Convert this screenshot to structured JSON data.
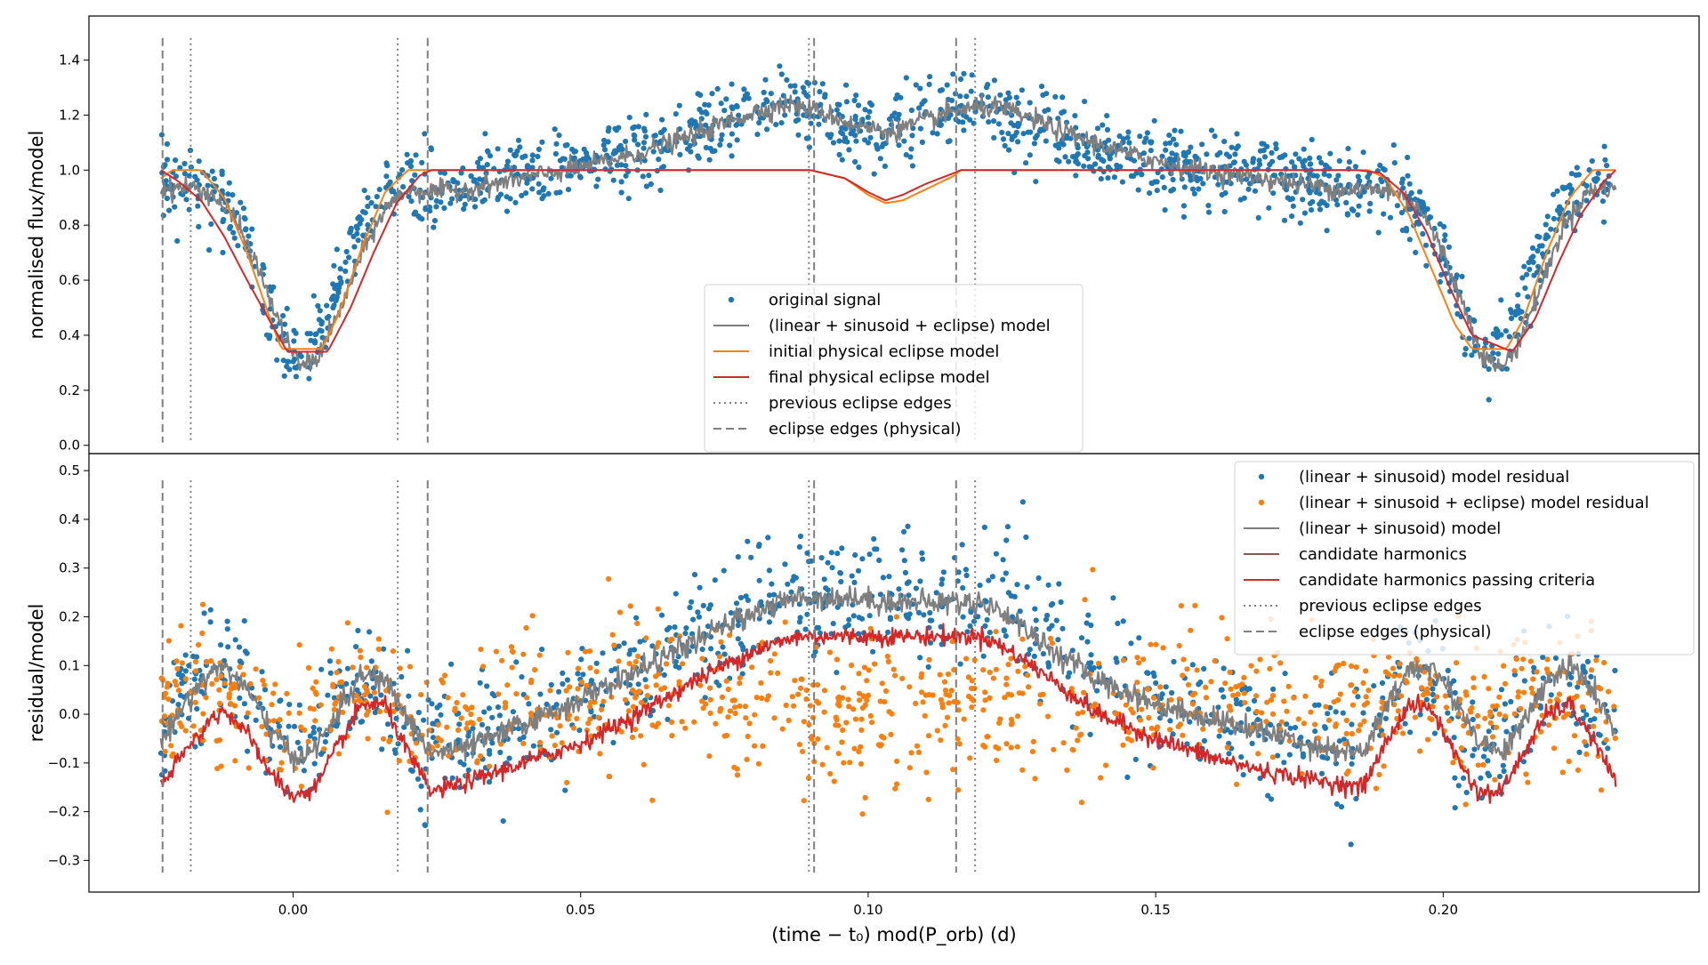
{
  "figure": {
    "xlabel": "(time − t₀) mod(P_orb) (d)",
    "xlim": [
      -0.0355,
      0.2445
    ],
    "xticks": [
      0.0,
      0.05,
      0.1,
      0.15,
      0.2
    ],
    "xtick_labels": [
      "0.00",
      "0.05",
      "0.10",
      "0.15",
      "0.20"
    ]
  },
  "colors": {
    "blue": "#1f77b4",
    "orange": "#ff7f0e",
    "grey": "#7f7f7f",
    "brown": "#8c564b",
    "red": "#d62728"
  },
  "chart_data": [
    {
      "type": "scatter",
      "ylabel": "normalised flux/model",
      "ylim": [
        -0.03,
        1.56
      ],
      "yticks": [
        0.0,
        0.2,
        0.4,
        0.6,
        0.8,
        1.0,
        1.2,
        1.4
      ],
      "ytick_labels": [
        "0.0",
        "0.2",
        "0.4",
        "0.6",
        "0.8",
        "1.0",
        "1.2",
        "1.4"
      ],
      "legend_position": "lower-center",
      "legend": [
        {
          "label": "original signal",
          "kind": "marker",
          "color": "blue"
        },
        {
          "label": "(linear + sinusoid + eclipse) model",
          "kind": "line",
          "color": "grey"
        },
        {
          "label": "initial physical eclipse model",
          "kind": "line",
          "color": "orange"
        },
        {
          "label": "final physical eclipse model",
          "kind": "line",
          "color": "red"
        },
        {
          "label": "previous eclipse edges",
          "kind": "dotted",
          "color": "grey"
        },
        {
          "label": "eclipse edges (physical)",
          "kind": "dashed",
          "color": "grey"
        }
      ],
      "series": [
        {
          "name": "original signal",
          "kind": "scatter",
          "color": "blue",
          "x": [
            -0.023,
            -0.02,
            -0.017,
            -0.014,
            -0.011,
            -0.008,
            -0.005,
            -0.002,
            0.001,
            0.004,
            0.007,
            0.01,
            0.013,
            0.016,
            0.019,
            0.022,
            0.025,
            0.03,
            0.04,
            0.05,
            0.06,
            0.07,
            0.08,
            0.085,
            0.09,
            0.095,
            0.1,
            0.105,
            0.11,
            0.115,
            0.12,
            0.125,
            0.13,
            0.14,
            0.15,
            0.16,
            0.17,
            0.18,
            0.186,
            0.19,
            0.193,
            0.196,
            0.199,
            0.202,
            0.205,
            0.208,
            0.211,
            0.214,
            0.217,
            0.22,
            0.223,
            0.226,
            0.229
          ],
          "y": [
            0.95,
            0.97,
            0.95,
            0.92,
            0.86,
            0.74,
            0.55,
            0.38,
            0.3,
            0.35,
            0.52,
            0.72,
            0.85,
            0.92,
            0.96,
            0.93,
            0.92,
            0.95,
            0.98,
            1.02,
            1.06,
            1.12,
            1.2,
            1.24,
            1.22,
            1.17,
            1.14,
            1.16,
            1.2,
            1.23,
            1.22,
            1.18,
            1.14,
            1.08,
            1.03,
            1.0,
            0.98,
            0.95,
            0.93,
            0.92,
            0.9,
            0.86,
            0.76,
            0.58,
            0.4,
            0.3,
            0.36,
            0.52,
            0.72,
            0.86,
            0.93,
            0.96,
            0.94
          ]
        },
        {
          "name": "(linear + sinusoid + eclipse) model",
          "kind": "line",
          "color": "grey",
          "x": [
            -0.023,
            -0.018,
            -0.014,
            -0.01,
            -0.006,
            -0.002,
            0.001,
            0.004,
            0.008,
            0.012,
            0.016,
            0.02,
            0.024,
            0.03,
            0.04,
            0.05,
            0.06,
            0.07,
            0.08,
            0.086,
            0.092,
            0.098,
            0.104,
            0.11,
            0.116,
            0.122,
            0.128,
            0.135,
            0.145,
            0.155,
            0.165,
            0.175,
            0.182,
            0.188,
            0.192,
            0.196,
            0.2,
            0.204,
            0.207,
            0.21,
            0.213,
            0.217,
            0.221,
            0.225,
            0.23
          ],
          "y": [
            0.93,
            0.94,
            0.91,
            0.82,
            0.64,
            0.42,
            0.29,
            0.31,
            0.48,
            0.7,
            0.86,
            0.93,
            0.92,
            0.93,
            0.97,
            1.01,
            1.06,
            1.13,
            1.21,
            1.24,
            1.21,
            1.16,
            1.14,
            1.18,
            1.22,
            1.23,
            1.19,
            1.13,
            1.06,
            1.01,
            0.98,
            0.95,
            0.93,
            0.93,
            0.92,
            0.86,
            0.7,
            0.48,
            0.32,
            0.28,
            0.36,
            0.58,
            0.8,
            0.92,
            0.94
          ]
        },
        {
          "name": "initial physical eclipse model",
          "kind": "line",
          "color": "orange",
          "x": [
            -0.023,
            -0.021,
            -0.016,
            -0.012,
            -0.008,
            -0.004,
            -0.002,
            0.005,
            0.008,
            0.012,
            0.016,
            0.02,
            0.024,
            0.085,
            0.09,
            0.096,
            0.1,
            0.103,
            0.106,
            0.11,
            0.115,
            0.116,
            0.185,
            0.187,
            0.19,
            0.194,
            0.198,
            0.202,
            0.205,
            0.211,
            0.214,
            0.218,
            0.222,
            0.226,
            0.23
          ],
          "y": [
            0.97,
            1.0,
            1.0,
            0.9,
            0.7,
            0.46,
            0.35,
            0.35,
            0.48,
            0.72,
            0.92,
            1.0,
            1.0,
            1.0,
            1.0,
            0.97,
            0.91,
            0.88,
            0.89,
            0.93,
            0.98,
            1.0,
            1.0,
            1.0,
            0.97,
            0.84,
            0.64,
            0.44,
            0.35,
            0.35,
            0.46,
            0.7,
            0.9,
            1.0,
            1.0
          ]
        },
        {
          "name": "final physical eclipse model",
          "kind": "line",
          "color": "red",
          "x": [
            -0.023,
            -0.02,
            -0.016,
            -0.012,
            -0.008,
            -0.004,
            -0.001,
            0.006,
            0.01,
            0.014,
            0.018,
            0.022,
            0.024,
            0.085,
            0.09,
            0.096,
            0.1,
            0.103,
            0.106,
            0.11,
            0.115,
            0.116,
            0.185,
            0.189,
            0.193,
            0.197,
            0.201,
            0.205,
            0.212,
            0.216,
            0.22,
            0.224,
            0.228,
            0.23
          ],
          "y": [
            1.0,
            0.96,
            0.89,
            0.76,
            0.6,
            0.45,
            0.34,
            0.34,
            0.5,
            0.7,
            0.88,
            0.98,
            1.0,
            1.0,
            1.0,
            0.97,
            0.92,
            0.89,
            0.91,
            0.95,
            0.99,
            1.0,
            1.0,
            0.99,
            0.92,
            0.78,
            0.58,
            0.4,
            0.34,
            0.46,
            0.66,
            0.84,
            0.96,
            1.0
          ]
        }
      ],
      "vlines": [
        {
          "x": -0.0227,
          "style": "dashed"
        },
        {
          "x": -0.0178,
          "style": "dotted"
        },
        {
          "x": 0.0182,
          "style": "dotted"
        },
        {
          "x": 0.0234,
          "style": "dashed"
        },
        {
          "x": 0.0897,
          "style": "dotted"
        },
        {
          "x": 0.0906,
          "style": "dashed"
        },
        {
          "x": 0.1153,
          "style": "dashed"
        },
        {
          "x": 0.1186,
          "style": "dotted"
        }
      ]
    },
    {
      "type": "scatter",
      "ylabel": "residual/model",
      "ylim": [
        -0.365,
        0.535
      ],
      "yticks": [
        -0.3,
        -0.2,
        -0.1,
        0.0,
        0.1,
        0.2,
        0.3,
        0.4,
        0.5
      ],
      "ytick_labels": [
        "−0.3",
        "−0.2",
        "−0.1",
        "0.0",
        "0.1",
        "0.2",
        "0.3",
        "0.4",
        "0.5"
      ],
      "legend_position": "upper-right",
      "legend": [
        {
          "label": "(linear + sinusoid) model residual",
          "kind": "marker",
          "color": "blue"
        },
        {
          "label": "(linear + sinusoid + eclipse) model residual",
          "kind": "marker",
          "color": "orange"
        },
        {
          "label": "(linear + sinusoid) model",
          "kind": "line",
          "color": "grey"
        },
        {
          "label": "candidate harmonics",
          "kind": "line",
          "color": "brown"
        },
        {
          "label": "candidate harmonics passing criteria",
          "kind": "line",
          "color": "red"
        },
        {
          "label": "previous eclipse edges",
          "kind": "dotted",
          "color": "grey"
        },
        {
          "label": "eclipse edges (physical)",
          "kind": "dashed",
          "color": "grey"
        }
      ],
      "series": [
        {
          "name": "(linear + sinusoid) model residual",
          "kind": "scatter",
          "color": "blue",
          "x": [
            -0.023,
            -0.019,
            -0.015,
            -0.011,
            -0.007,
            -0.003,
            0.001,
            0.005,
            0.009,
            0.013,
            0.017,
            0.021,
            0.025,
            0.03,
            0.04,
            0.05,
            0.06,
            0.07,
            0.08,
            0.088,
            0.096,
            0.104,
            0.112,
            0.12,
            0.128,
            0.136,
            0.146,
            0.156,
            0.166,
            0.176,
            0.184,
            0.19,
            0.194,
            0.198,
            0.202,
            0.206,
            0.21,
            0.214,
            0.218,
            0.222,
            0.226,
            0.23
          ],
          "y": [
            -0.05,
            0.05,
            0.1,
            0.09,
            0.02,
            -0.06,
            -0.08,
            -0.03,
            0.05,
            0.08,
            0.03,
            -0.05,
            -0.08,
            -0.07,
            -0.02,
            0.03,
            0.09,
            0.15,
            0.21,
            0.24,
            0.24,
            0.24,
            0.23,
            0.23,
            0.2,
            0.13,
            0.06,
            0.01,
            -0.02,
            -0.05,
            -0.07,
            0.02,
            0.08,
            0.09,
            0.01,
            -0.06,
            -0.07,
            0.0,
            0.08,
            0.09,
            0.02,
            -0.05
          ]
        },
        {
          "name": "(linear + sinusoid + eclipse) model residual",
          "kind": "scatter",
          "color": "orange",
          "x": [
            -0.023,
            -0.019,
            -0.015,
            -0.011,
            -0.007,
            -0.003,
            0.001,
            0.005,
            0.009,
            0.013,
            0.017,
            0.021,
            0.025,
            0.03,
            0.04,
            0.05,
            0.06,
            0.07,
            0.08,
            0.088,
            0.096,
            0.104,
            0.112,
            0.12,
            0.128,
            0.136,
            0.146,
            0.156,
            0.166,
            0.176,
            0.184,
            0.19,
            0.194,
            0.198,
            0.202,
            0.206,
            0.21,
            0.214,
            0.218,
            0.222,
            0.226,
            0.23
          ],
          "y": [
            0.02,
            0.04,
            0.05,
            0.03,
            0.01,
            -0.02,
            -0.01,
            0.02,
            0.04,
            0.05,
            0.03,
            0.0,
            -0.01,
            0.01,
            0.02,
            0.03,
            0.03,
            0.02,
            0.01,
            0.0,
            0.0,
            0.01,
            0.0,
            0.01,
            0.02,
            0.01,
            0.02,
            0.03,
            0.03,
            0.02,
            0.01,
            0.03,
            0.05,
            0.04,
            0.02,
            -0.01,
            0.0,
            0.03,
            0.05,
            0.04,
            0.02,
            0.01
          ]
        },
        {
          "name": "(linear + sinusoid) model",
          "kind": "line",
          "color": "grey",
          "x": [
            -0.023,
            -0.019,
            -0.015,
            -0.012,
            -0.008,
            -0.004,
            0.0,
            0.004,
            0.008,
            0.012,
            0.016,
            0.02,
            0.024,
            0.03,
            0.04,
            0.05,
            0.06,
            0.07,
            0.08,
            0.088,
            0.096,
            0.104,
            0.112,
            0.12,
            0.126,
            0.132,
            0.14,
            0.15,
            0.16,
            0.17,
            0.18,
            0.186,
            0.19,
            0.194,
            0.198,
            0.202,
            0.206,
            0.21,
            0.214,
            0.218,
            0.222,
            0.226,
            0.23
          ],
          "y": [
            -0.06,
            0.02,
            0.08,
            0.1,
            0.05,
            -0.03,
            -0.09,
            -0.07,
            0.01,
            0.08,
            0.07,
            -0.01,
            -0.08,
            -0.07,
            -0.02,
            0.03,
            0.09,
            0.15,
            0.21,
            0.24,
            0.24,
            0.23,
            0.23,
            0.23,
            0.19,
            0.13,
            0.07,
            0.02,
            -0.01,
            -0.04,
            -0.07,
            -0.08,
            0.01,
            0.09,
            0.1,
            0.03,
            -0.05,
            -0.08,
            -0.02,
            0.07,
            0.1,
            0.05,
            -0.04
          ]
        },
        {
          "name": "candidate harmonics passing criteria",
          "kind": "line",
          "color": "red",
          "x": [
            -0.023,
            -0.019,
            -0.015,
            -0.012,
            -0.008,
            -0.004,
            0.0,
            0.004,
            0.008,
            0.012,
            0.016,
            0.02,
            0.024,
            0.03,
            0.04,
            0.05,
            0.06,
            0.07,
            0.08,
            0.088,
            0.096,
            0.104,
            0.112,
            0.12,
            0.126,
            0.132,
            0.14,
            0.15,
            0.16,
            0.17,
            0.18,
            0.186,
            0.19,
            0.194,
            0.198,
            0.202,
            0.206,
            0.21,
            0.214,
            0.218,
            0.222,
            0.226,
            0.23
          ],
          "y": [
            -0.15,
            -0.08,
            -0.02,
            0.01,
            -0.04,
            -0.12,
            -0.17,
            -0.15,
            -0.06,
            0.02,
            0.02,
            -0.08,
            -0.16,
            -0.14,
            -0.1,
            -0.06,
            0.0,
            0.07,
            0.13,
            0.16,
            0.16,
            0.16,
            0.16,
            0.16,
            0.12,
            0.07,
            0.0,
            -0.05,
            -0.09,
            -0.12,
            -0.14,
            -0.15,
            -0.06,
            0.02,
            0.01,
            -0.08,
            -0.16,
            -0.16,
            -0.08,
            0.0,
            0.02,
            -0.05,
            -0.14
          ]
        }
      ],
      "vlines": [
        {
          "x": -0.0227,
          "style": "dashed"
        },
        {
          "x": -0.0178,
          "style": "dotted"
        },
        {
          "x": 0.0182,
          "style": "dotted"
        },
        {
          "x": 0.0234,
          "style": "dashed"
        },
        {
          "x": 0.0897,
          "style": "dotted"
        },
        {
          "x": 0.0906,
          "style": "dashed"
        },
        {
          "x": 0.1153,
          "style": "dashed"
        },
        {
          "x": 0.1186,
          "style": "dotted"
        }
      ]
    }
  ]
}
